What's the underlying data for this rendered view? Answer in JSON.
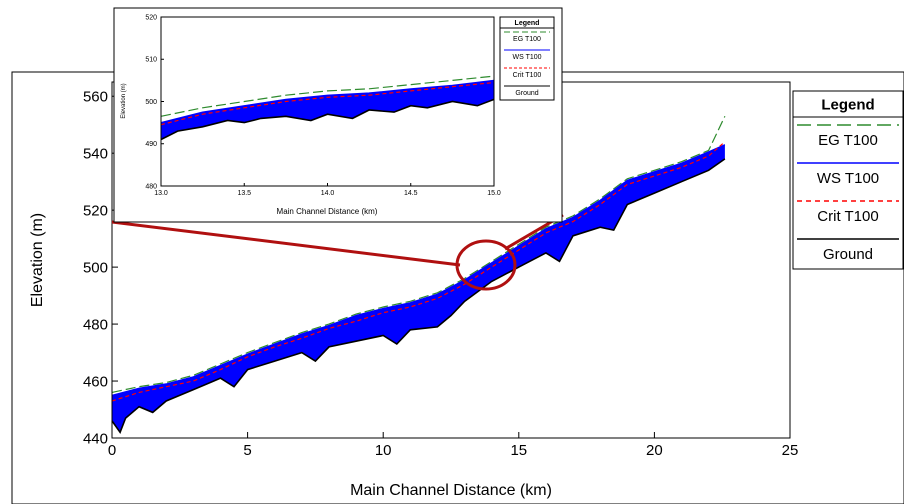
{
  "chart_data": [
    {
      "type": "line",
      "xlabel": "Main Channel Distance (km)",
      "ylabel": "Elevation (m)",
      "xlim": [
        0,
        25
      ],
      "ylim": [
        440,
        565
      ],
      "xticks": [
        "0",
        "5",
        "10",
        "15",
        "20",
        "25"
      ],
      "yticks": [
        "440",
        "460",
        "480",
        "500",
        "520",
        "540",
        "560"
      ],
      "grid": false,
      "legend": {
        "title": "Legend",
        "placement": "right",
        "entries": [
          "EG  T100",
          "WS  T100",
          "Crit  T100",
          "Ground"
        ]
      },
      "series": [
        {
          "name": "EG  T100",
          "color": "#2e8b2e",
          "x": [
            0,
            1,
            2,
            3,
            4,
            5,
            6,
            7,
            8,
            9,
            10,
            11,
            12,
            13,
            14,
            15,
            16,
            17,
            18,
            19,
            20,
            21,
            22,
            22.6
          ],
          "y": [
            456,
            458,
            459.5,
            462,
            466,
            470,
            473.5,
            477,
            480,
            483.5,
            486,
            488,
            491,
            496,
            502,
            508,
            514,
            518,
            524,
            531,
            534,
            537,
            541,
            553
          ]
        },
        {
          "name": "WS  T100",
          "color": "#0000ff",
          "x": [
            0,
            1,
            2,
            3,
            4,
            5,
            6,
            7,
            8,
            9,
            10,
            11,
            12,
            13,
            14,
            15,
            16,
            17,
            18,
            19,
            20,
            21,
            22,
            22.6
          ],
          "y": [
            455,
            457.5,
            459,
            461.5,
            465.5,
            469.5,
            473,
            476.5,
            479.5,
            483,
            485.5,
            487.5,
            490.5,
            495.5,
            501.5,
            507.5,
            513.5,
            517.5,
            523.5,
            530.5,
            533.5,
            536.5,
            540.5,
            543
          ]
        },
        {
          "name": "Crit  T100",
          "color": "#ff0000",
          "x": [
            0,
            1,
            2,
            3,
            4,
            5,
            6,
            7,
            8,
            9,
            10,
            11,
            12,
            13,
            14,
            15,
            16,
            17,
            18,
            19,
            20,
            21,
            22,
            22.6
          ],
          "y": [
            453,
            456,
            458,
            460,
            464,
            468.5,
            472,
            475,
            478.5,
            481,
            484,
            486,
            489,
            494,
            500,
            506,
            512,
            516,
            522,
            529,
            532,
            535,
            539,
            544
          ]
        },
        {
          "name": "Ground",
          "color": "#000000",
          "x": [
            0,
            0.3,
            0.5,
            1,
            1.5,
            2,
            3,
            4,
            4.5,
            5,
            6,
            7,
            7.5,
            8,
            9,
            10,
            10.5,
            11,
            12,
            12.5,
            13,
            14,
            15,
            16,
            16.5,
            17,
            18,
            18.5,
            19,
            20,
            21,
            22,
            22.6
          ],
          "y": [
            446,
            442,
            447,
            451,
            449,
            453,
            457,
            461,
            458,
            464,
            467,
            470,
            467,
            472,
            474,
            476,
            473,
            478,
            479,
            483,
            488,
            495,
            500,
            505,
            502,
            511,
            514,
            513,
            522,
            526,
            530,
            534,
            538
          ]
        }
      ]
    },
    {
      "type": "line",
      "xlabel": "Main Channel Distance (km)",
      "ylabel": "Elevation (m)",
      "xlim": [
        13.0,
        15.0
      ],
      "ylim": [
        480,
        520
      ],
      "xticks": [
        "13.0",
        "13.5",
        "14.0",
        "14.5",
        "15.0"
      ],
      "yticks": [
        "480",
        "490",
        "500",
        "510",
        "520"
      ],
      "grid": false,
      "legend": {
        "title": "Legend",
        "placement": "right",
        "entries": [
          "EG  T100",
          "WS  T100",
          "Crit  T100",
          "Ground"
        ]
      },
      "series": [
        {
          "name": "EG  T100",
          "color": "#2e8b2e",
          "x": [
            13.0,
            13.25,
            13.5,
            13.75,
            14.0,
            14.25,
            14.5,
            14.75,
            15.0
          ],
          "y": [
            496.5,
            498.5,
            500,
            501.5,
            502.5,
            503,
            504,
            505,
            506
          ]
        },
        {
          "name": "WS  T100",
          "color": "#0000ff",
          "x": [
            13.0,
            13.25,
            13.5,
            13.75,
            14.0,
            14.25,
            14.5,
            14.75,
            15.0
          ],
          "y": [
            495,
            497.5,
            499,
            500.5,
            501.5,
            502,
            503,
            503.8,
            505
          ]
        },
        {
          "name": "Crit  T100",
          "color": "#ff0000",
          "x": [
            13.0,
            13.25,
            13.5,
            13.75,
            14.0,
            14.25,
            14.5,
            14.75,
            15.0
          ],
          "y": [
            494.5,
            497,
            498.5,
            500,
            501,
            501.5,
            502.5,
            503.5,
            504.5
          ]
        },
        {
          "name": "Ground",
          "color": "#000000",
          "x": [
            13.0,
            13.1,
            13.25,
            13.4,
            13.5,
            13.6,
            13.75,
            13.9,
            14.0,
            14.15,
            14.25,
            14.4,
            14.5,
            14.6,
            14.75,
            14.9,
            15.0
          ],
          "y": [
            491,
            493,
            494,
            495.5,
            495,
            496,
            496.5,
            495.5,
            497,
            496,
            498,
            497.5,
            499,
            498.5,
            500,
            499,
            500.5
          ]
        }
      ]
    }
  ]
}
